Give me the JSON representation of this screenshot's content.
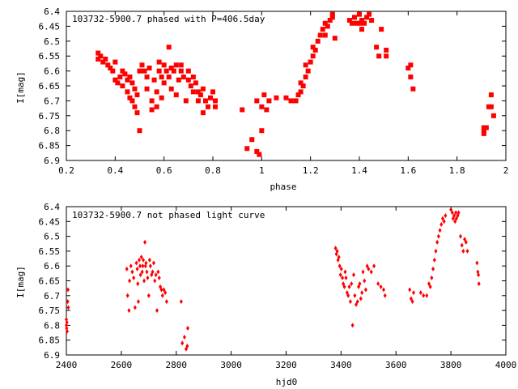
{
  "chart_data": [
    {
      "type": "scatter",
      "title": "103732-5900.7 phased with P=406.5day",
      "xlabel": "phase",
      "ylabel": "I[mag]",
      "xlim": [
        0.2,
        2.0
      ],
      "ylim": [
        6.9,
        6.4
      ],
      "y_inverted": true,
      "grid": false,
      "marker_color": "#ff0000",
      "marker": "filled-square",
      "xticks": [
        "0.2",
        "0.4",
        "0.6",
        "0.8",
        "1",
        "1.2",
        "1.4",
        "1.6",
        "1.8",
        "2"
      ],
      "yticks": [
        "6.4",
        "6.45",
        "6.5",
        "6.55",
        "6.6",
        "6.65",
        "6.7",
        "6.75",
        "6.8",
        "6.85",
        "6.9"
      ],
      "points": [
        [
          0.33,
          6.54
        ],
        [
          0.33,
          6.56
        ],
        [
          0.34,
          6.55
        ],
        [
          0.35,
          6.57
        ],
        [
          0.36,
          6.56
        ],
        [
          0.37,
          6.58
        ],
        [
          0.38,
          6.59
        ],
        [
          0.39,
          6.6
        ],
        [
          0.4,
          6.57
        ],
        [
          0.4,
          6.63
        ],
        [
          0.41,
          6.64
        ],
        [
          0.42,
          6.62
        ],
        [
          0.43,
          6.6
        ],
        [
          0.43,
          6.65
        ],
        [
          0.44,
          6.61
        ],
        [
          0.45,
          6.67
        ],
        [
          0.45,
          6.63
        ],
        [
          0.46,
          6.62
        ],
        [
          0.46,
          6.69
        ],
        [
          0.47,
          6.64
        ],
        [
          0.47,
          6.7
        ],
        [
          0.48,
          6.66
        ],
        [
          0.48,
          6.72
        ],
        [
          0.49,
          6.68
        ],
        [
          0.49,
          6.74
        ],
        [
          0.5,
          6.8
        ],
        [
          0.5,
          6.6
        ],
        [
          0.51,
          6.58
        ],
        [
          0.52,
          6.6
        ],
        [
          0.53,
          6.62
        ],
        [
          0.53,
          6.66
        ],
        [
          0.54,
          6.59
        ],
        [
          0.55,
          6.7
        ],
        [
          0.55,
          6.73
        ],
        [
          0.56,
          6.63
        ],
        [
          0.57,
          6.72
        ],
        [
          0.57,
          6.67
        ],
        [
          0.58,
          6.6
        ],
        [
          0.58,
          6.57
        ],
        [
          0.59,
          6.62
        ],
        [
          0.59,
          6.69
        ],
        [
          0.6,
          6.64
        ],
        [
          0.6,
          6.58
        ],
        [
          0.61,
          6.6
        ],
        [
          0.62,
          6.62
        ],
        [
          0.62,
          6.52
        ],
        [
          0.63,
          6.59
        ],
        [
          0.63,
          6.66
        ],
        [
          0.64,
          6.6
        ],
        [
          0.65,
          6.58
        ],
        [
          0.65,
          6.68
        ],
        [
          0.66,
          6.63
        ],
        [
          0.67,
          6.6
        ],
        [
          0.67,
          6.58
        ],
        [
          0.68,
          6.62
        ],
        [
          0.69,
          6.7
        ],
        [
          0.7,
          6.6
        ],
        [
          0.7,
          6.63
        ],
        [
          0.71,
          6.65
        ],
        [
          0.72,
          6.67
        ],
        [
          0.72,
          6.62
        ],
        [
          0.73,
          6.64
        ],
        [
          0.74,
          6.67
        ],
        [
          0.74,
          6.7
        ],
        [
          0.75,
          6.68
        ],
        [
          0.76,
          6.66
        ],
        [
          0.76,
          6.74
        ],
        [
          0.77,
          6.7
        ],
        [
          0.78,
          6.72
        ],
        [
          0.79,
          6.69
        ],
        [
          0.8,
          6.67
        ],
        [
          0.81,
          6.7
        ],
        [
          0.81,
          6.72
        ],
        [
          0.92,
          6.73
        ],
        [
          0.94,
          6.86
        ],
        [
          0.96,
          6.83
        ],
        [
          0.98,
          6.7
        ],
        [
          0.98,
          6.87
        ],
        [
          0.99,
          6.88
        ],
        [
          1.0,
          6.72
        ],
        [
          1.0,
          6.8
        ],
        [
          1.01,
          6.68
        ],
        [
          1.02,
          6.73
        ],
        [
          1.03,
          6.7
        ],
        [
          1.06,
          6.69
        ],
        [
          1.1,
          6.69
        ],
        [
          1.12,
          6.7
        ],
        [
          1.14,
          6.7
        ],
        [
          1.15,
          6.68
        ],
        [
          1.16,
          6.67
        ],
        [
          1.16,
          6.64
        ],
        [
          1.17,
          6.65
        ],
        [
          1.18,
          6.62
        ],
        [
          1.18,
          6.58
        ],
        [
          1.19,
          6.6
        ],
        [
          1.2,
          6.57
        ],
        [
          1.21,
          6.55
        ],
        [
          1.21,
          6.52
        ],
        [
          1.22,
          6.53
        ],
        [
          1.23,
          6.5
        ],
        [
          1.24,
          6.48
        ],
        [
          1.25,
          6.46
        ],
        [
          1.26,
          6.48
        ],
        [
          1.26,
          6.44
        ],
        [
          1.27,
          6.45
        ],
        [
          1.28,
          6.43
        ],
        [
          1.29,
          6.42
        ],
        [
          1.29,
          6.41
        ],
        [
          1.3,
          6.49
        ],
        [
          1.36,
          6.43
        ],
        [
          1.37,
          6.44
        ],
        [
          1.38,
          6.42
        ],
        [
          1.39,
          6.44
        ],
        [
          1.4,
          6.41
        ],
        [
          1.4,
          6.44
        ],
        [
          1.41,
          6.46
        ],
        [
          1.41,
          6.43
        ],
        [
          1.42,
          6.44
        ],
        [
          1.43,
          6.42
        ],
        [
          1.44,
          6.41
        ],
        [
          1.45,
          6.43
        ],
        [
          1.47,
          6.52
        ],
        [
          1.48,
          6.55
        ],
        [
          1.49,
          6.46
        ],
        [
          1.51,
          6.53
        ],
        [
          1.51,
          6.55
        ],
        [
          1.6,
          6.59
        ],
        [
          1.61,
          6.62
        ],
        [
          1.61,
          6.58
        ],
        [
          1.62,
          6.66
        ],
        [
          1.91,
          6.79
        ],
        [
          1.91,
          6.8
        ],
        [
          1.91,
          6.81
        ],
        [
          1.92,
          6.79
        ],
        [
          1.93,
          6.72
        ],
        [
          1.94,
          6.68
        ],
        [
          1.94,
          6.72
        ],
        [
          1.95,
          6.75
        ]
      ]
    },
    {
      "type": "scatter",
      "title": "103732-5900.7 not phased light curve",
      "xlabel": "hjd0",
      "ylabel": "I[mag]",
      "xlim": [
        2400,
        4000
      ],
      "ylim": [
        6.9,
        6.4
      ],
      "y_inverted": true,
      "grid": false,
      "marker_color": "#ff0000",
      "marker": "small-diamond",
      "xticks": [
        "2400",
        "2600",
        "2800",
        "3000",
        "3200",
        "3400",
        "3600",
        "3800",
        "4000"
      ],
      "yticks": [
        "6.4",
        "6.45",
        "6.5",
        "6.55",
        "6.6",
        "6.65",
        "6.7",
        "6.75",
        "6.8",
        "6.85",
        "6.9"
      ],
      "points": [
        [
          2400,
          6.78
        ],
        [
          2400,
          6.8
        ],
        [
          2401,
          6.81
        ],
        [
          2402,
          6.79
        ],
        [
          2403,
          6.82
        ],
        [
          2405,
          6.72
        ],
        [
          2406,
          6.68
        ],
        [
          2407,
          6.74
        ],
        [
          2620,
          6.61
        ],
        [
          2623,
          6.7
        ],
        [
          2628,
          6.75
        ],
        [
          2630,
          6.65
        ],
        [
          2635,
          6.6
        ],
        [
          2640,
          6.62
        ],
        [
          2645,
          6.64
        ],
        [
          2650,
          6.74
        ],
        [
          2655,
          6.59
        ],
        [
          2658,
          6.61
        ],
        [
          2660,
          6.66
        ],
        [
          2662,
          6.72
        ],
        [
          2665,
          6.58
        ],
        [
          2668,
          6.6
        ],
        [
          2670,
          6.63
        ],
        [
          2673,
          6.57
        ],
        [
          2676,
          6.62
        ],
        [
          2678,
          6.6
        ],
        [
          2680,
          6.58
        ],
        [
          2683,
          6.65
        ],
        [
          2686,
          6.52
        ],
        [
          2688,
          6.6
        ],
        [
          2690,
          6.59
        ],
        [
          2693,
          6.62
        ],
        [
          2696,
          6.64
        ],
        [
          2700,
          6.7
        ],
        [
          2703,
          6.58
        ],
        [
          2706,
          6.6
        ],
        [
          2710,
          6.63
        ],
        [
          2714,
          6.62
        ],
        [
          2718,
          6.59
        ],
        [
          2722,
          6.65
        ],
        [
          2726,
          6.63
        ],
        [
          2730,
          6.75
        ],
        [
          2734,
          6.62
        ],
        [
          2738,
          6.64
        ],
        [
          2742,
          6.67
        ],
        [
          2746,
          6.68
        ],
        [
          2750,
          6.7
        ],
        [
          2755,
          6.68
        ],
        [
          2760,
          6.69
        ],
        [
          2765,
          6.72
        ],
        [
          2818,
          6.72
        ],
        [
          2822,
          6.86
        ],
        [
          2830,
          6.84
        ],
        [
          2836,
          6.88
        ],
        [
          2840,
          6.87
        ],
        [
          2842,
          6.81
        ],
        [
          3380,
          6.54
        ],
        [
          3383,
          6.56
        ],
        [
          3386,
          6.55
        ],
        [
          3389,
          6.58
        ],
        [
          3392,
          6.57
        ],
        [
          3395,
          6.6
        ],
        [
          3398,
          6.63
        ],
        [
          3401,
          6.61
        ],
        [
          3405,
          6.64
        ],
        [
          3408,
          6.66
        ],
        [
          3412,
          6.67
        ],
        [
          3415,
          6.62
        ],
        [
          3418,
          6.64
        ],
        [
          3422,
          6.69
        ],
        [
          3426,
          6.7
        ],
        [
          3430,
          6.67
        ],
        [
          3434,
          6.72
        ],
        [
          3438,
          6.66
        ],
        [
          3442,
          6.8
        ],
        [
          3446,
          6.63
        ],
        [
          3450,
          6.7
        ],
        [
          3455,
          6.73
        ],
        [
          3460,
          6.72
        ],
        [
          3464,
          6.67
        ],
        [
          3468,
          6.66
        ],
        [
          3472,
          6.71
        ],
        [
          3476,
          6.69
        ],
        [
          3480,
          6.62
        ],
        [
          3485,
          6.65
        ],
        [
          3490,
          6.68
        ],
        [
          3495,
          6.6
        ],
        [
          3500,
          6.61
        ],
        [
          3510,
          6.62
        ],
        [
          3520,
          6.6
        ],
        [
          3535,
          6.66
        ],
        [
          3545,
          6.67
        ],
        [
          3555,
          6.68
        ],
        [
          3560,
          6.7
        ],
        [
          3650,
          6.68
        ],
        [
          3655,
          6.71
        ],
        [
          3660,
          6.72
        ],
        [
          3664,
          6.69
        ],
        [
          3690,
          6.69
        ],
        [
          3700,
          6.7
        ],
        [
          3712,
          6.7
        ],
        [
          3720,
          6.66
        ],
        [
          3725,
          6.67
        ],
        [
          3730,
          6.64
        ],
        [
          3735,
          6.61
        ],
        [
          3740,
          6.58
        ],
        [
          3745,
          6.55
        ],
        [
          3750,
          6.52
        ],
        [
          3755,
          6.5
        ],
        [
          3760,
          6.48
        ],
        [
          3765,
          6.46
        ],
        [
          3770,
          6.44
        ],
        [
          3775,
          6.45
        ],
        [
          3780,
          6.43
        ],
        [
          3800,
          6.41
        ],
        [
          3805,
          6.42
        ],
        [
          3808,
          6.44
        ],
        [
          3812,
          6.43
        ],
        [
          3815,
          6.45
        ],
        [
          3818,
          6.42
        ],
        [
          3820,
          6.44
        ],
        [
          3825,
          6.43
        ],
        [
          3828,
          6.42
        ],
        [
          3835,
          6.5
        ],
        [
          3840,
          6.53
        ],
        [
          3845,
          6.55
        ],
        [
          3850,
          6.51
        ],
        [
          3855,
          6.52
        ],
        [
          3860,
          6.55
        ],
        [
          3895,
          6.59
        ],
        [
          3898,
          6.62
        ],
        [
          3900,
          6.63
        ],
        [
          3902,
          6.66
        ]
      ]
    }
  ]
}
